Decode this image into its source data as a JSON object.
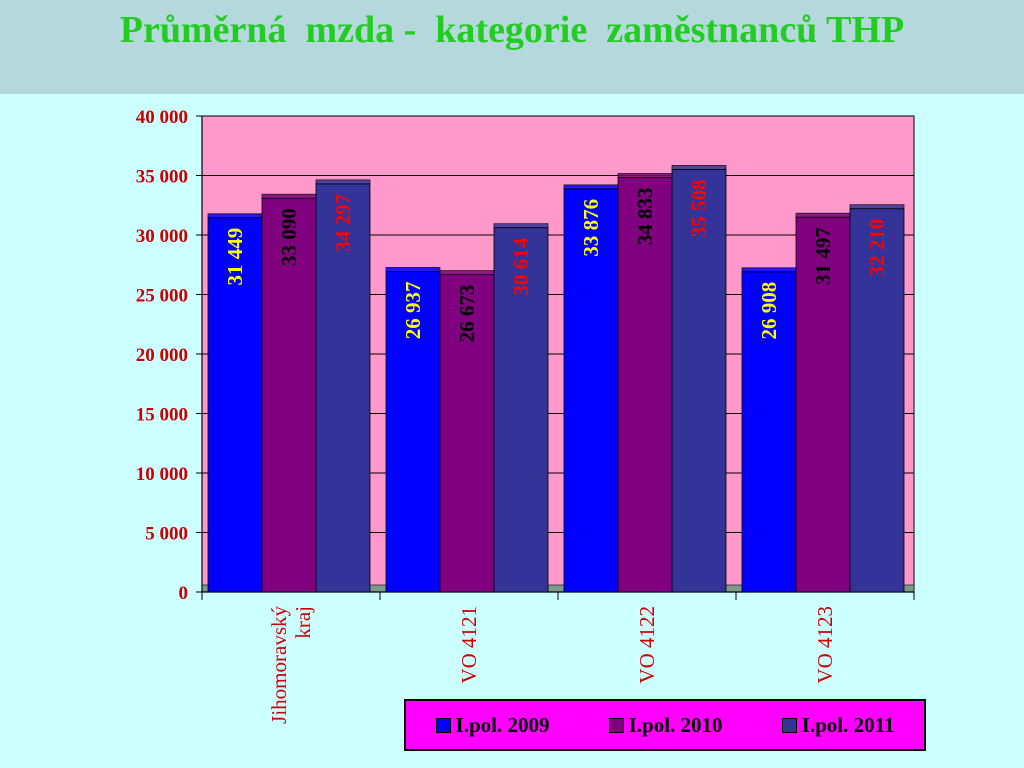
{
  "title": "Průměrná  mzda -  kategorie  zaměstnanců THP",
  "colors": {
    "background": "#ccffff",
    "title_band": "#b5d8dc",
    "title_text": "#22cc22",
    "plot_area": "#ff99cc",
    "legend_background": "#ff00ff",
    "axis_text": "#cc0000",
    "series": [
      "#0000ff",
      "#800080",
      "#333399"
    ],
    "label_colors": [
      "#ffff00",
      "#000000",
      "#ff0000"
    ]
  },
  "chart_data": {
    "type": "bar",
    "categories": [
      "Jihomoravský\nkraj",
      "VO  4121",
      "VO 4122",
      "VO  4123"
    ],
    "series": [
      {
        "name": "I.pol. 2009",
        "values": [
          31449,
          26937,
          33876,
          26908
        ]
      },
      {
        "name": "I.pol. 2010",
        "values": [
          33090,
          26673,
          34833,
          31497
        ]
      },
      {
        "name": "I.pol. 2011",
        "values": [
          34297,
          30614,
          35508,
          32210
        ]
      }
    ],
    "data_labels": [
      [
        "31 449",
        "26 937",
        "33 876",
        "26 908"
      ],
      [
        "33 090",
        "26 673",
        "34 833",
        "31 497"
      ],
      [
        "34 297",
        "30 614",
        "35 508",
        "32 210"
      ]
    ],
    "ylim": [
      0,
      40000
    ],
    "yticks": [
      0,
      5000,
      10000,
      15000,
      20000,
      25000,
      30000,
      35000,
      40000
    ],
    "ytick_labels": [
      "0",
      "5 000",
      "10 000",
      "15 000",
      "20 000",
      "25 000",
      "30 000",
      "35 000",
      "40 000"
    ],
    "grid": true,
    "legend_position": "bottom-right"
  }
}
